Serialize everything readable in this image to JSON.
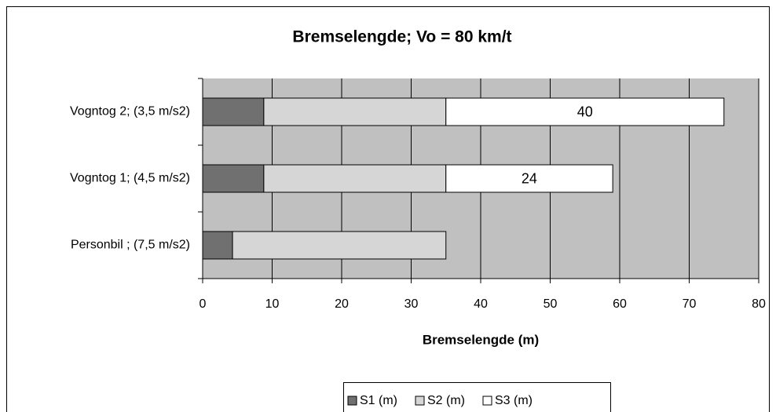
{
  "chart_data": {
    "type": "stacked-barh",
    "title": "Bremselengde; Vo = 80 km/t",
    "xlabel": "Bremselengde (m)",
    "categories": [
      "Personbil ; (7,5 m/s2)",
      "Vogntog 1; (4,5 m/s2)",
      "Vogntog 2; (3,5 m/s2)"
    ],
    "series": [
      {
        "name": "S1 (m)",
        "color": "#707070",
        "values": [
          4.3,
          8.8,
          8.8
        ]
      },
      {
        "name": "S2 (m)",
        "color": "#d6d6d6",
        "values": [
          30.7,
          26.2,
          26.2
        ]
      },
      {
        "name": "S3 (m)",
        "color": "#ffffff",
        "values": [
          null,
          24,
          40
        ],
        "data_labels": true
      }
    ],
    "xlim": [
      0,
      80
    ],
    "xticks": [
      0,
      10,
      20,
      30,
      40,
      50,
      60,
      70,
      80
    ],
    "grid": true,
    "legend": "bottom",
    "plot_background": "#c0c0c0"
  }
}
